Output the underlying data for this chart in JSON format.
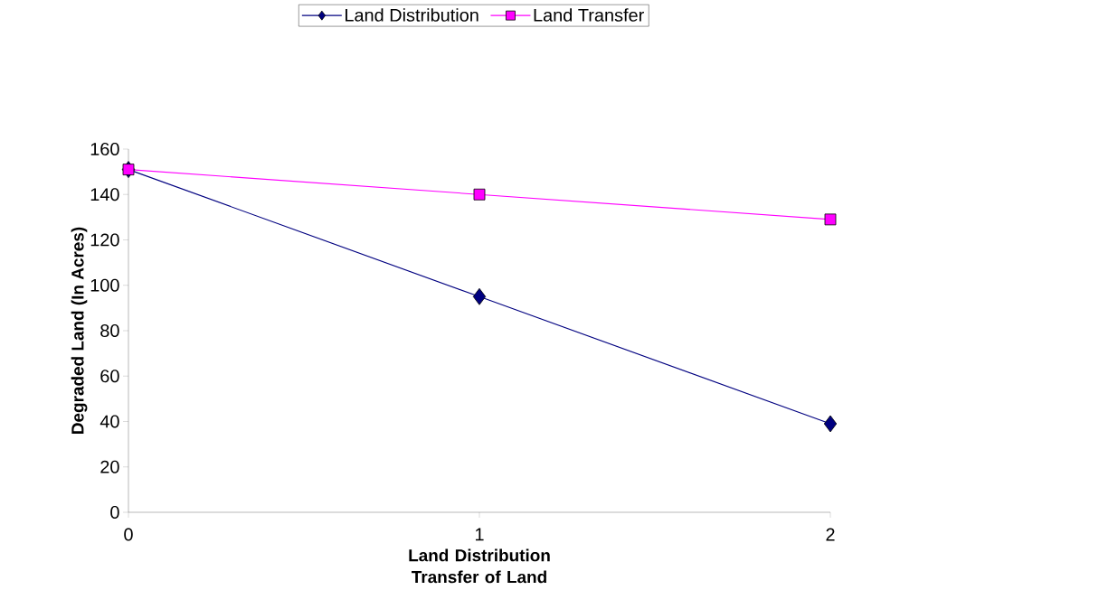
{
  "chart_data": {
    "type": "line",
    "xlabel": "Land Distribution Transfer of Land",
    "ylabel": "Degraded Land (In Acres)",
    "x": [
      0,
      1,
      2
    ],
    "xlim": [
      0,
      2
    ],
    "xticks": [
      0,
      1,
      2
    ],
    "ylim": [
      0,
      160
    ],
    "yticks": [
      0,
      20,
      40,
      60,
      80,
      100,
      120,
      140,
      160
    ],
    "legend": "top",
    "grid": false,
    "series": [
      {
        "name": "Land Distribution",
        "color": "#000080",
        "marker": "diamond",
        "values": [
          151,
          95,
          39
        ]
      },
      {
        "name": "Land Transfer",
        "color": "#ff00ff",
        "marker": "square",
        "values": [
          151,
          140,
          129
        ]
      }
    ]
  }
}
